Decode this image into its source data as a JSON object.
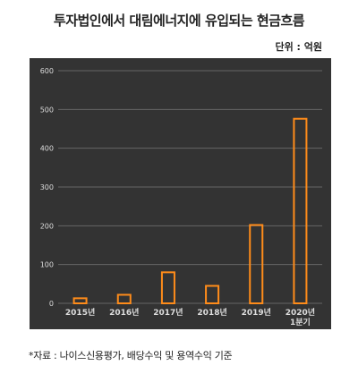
{
  "title": "투자법인에서 대림에너지에 유입되는 현금흐름",
  "unit_label": "단위 : 억원",
  "source": "*자료 : 나이스신용평가, 배당수익 및 용역수익 기준",
  "colors": {
    "plot_background": "#333333",
    "bar_outline": "#ff8c1a",
    "gridline": "#666666",
    "axis_text": "#dddddd"
  },
  "chart_data": {
    "type": "bar",
    "title": "투자법인에서 대림에너지에 유입되는 현금흐름",
    "xlabel": "",
    "ylabel": "",
    "ylim": [
      0,
      600
    ],
    "yticks": [
      0,
      100,
      200,
      300,
      400,
      500,
      600
    ],
    "grid": true,
    "categories": [
      "2015년",
      "2016년",
      "2017년",
      "2018년",
      "2019년",
      "2020년\n1분기"
    ],
    "values": [
      13,
      22,
      80,
      45,
      202,
      476
    ]
  }
}
